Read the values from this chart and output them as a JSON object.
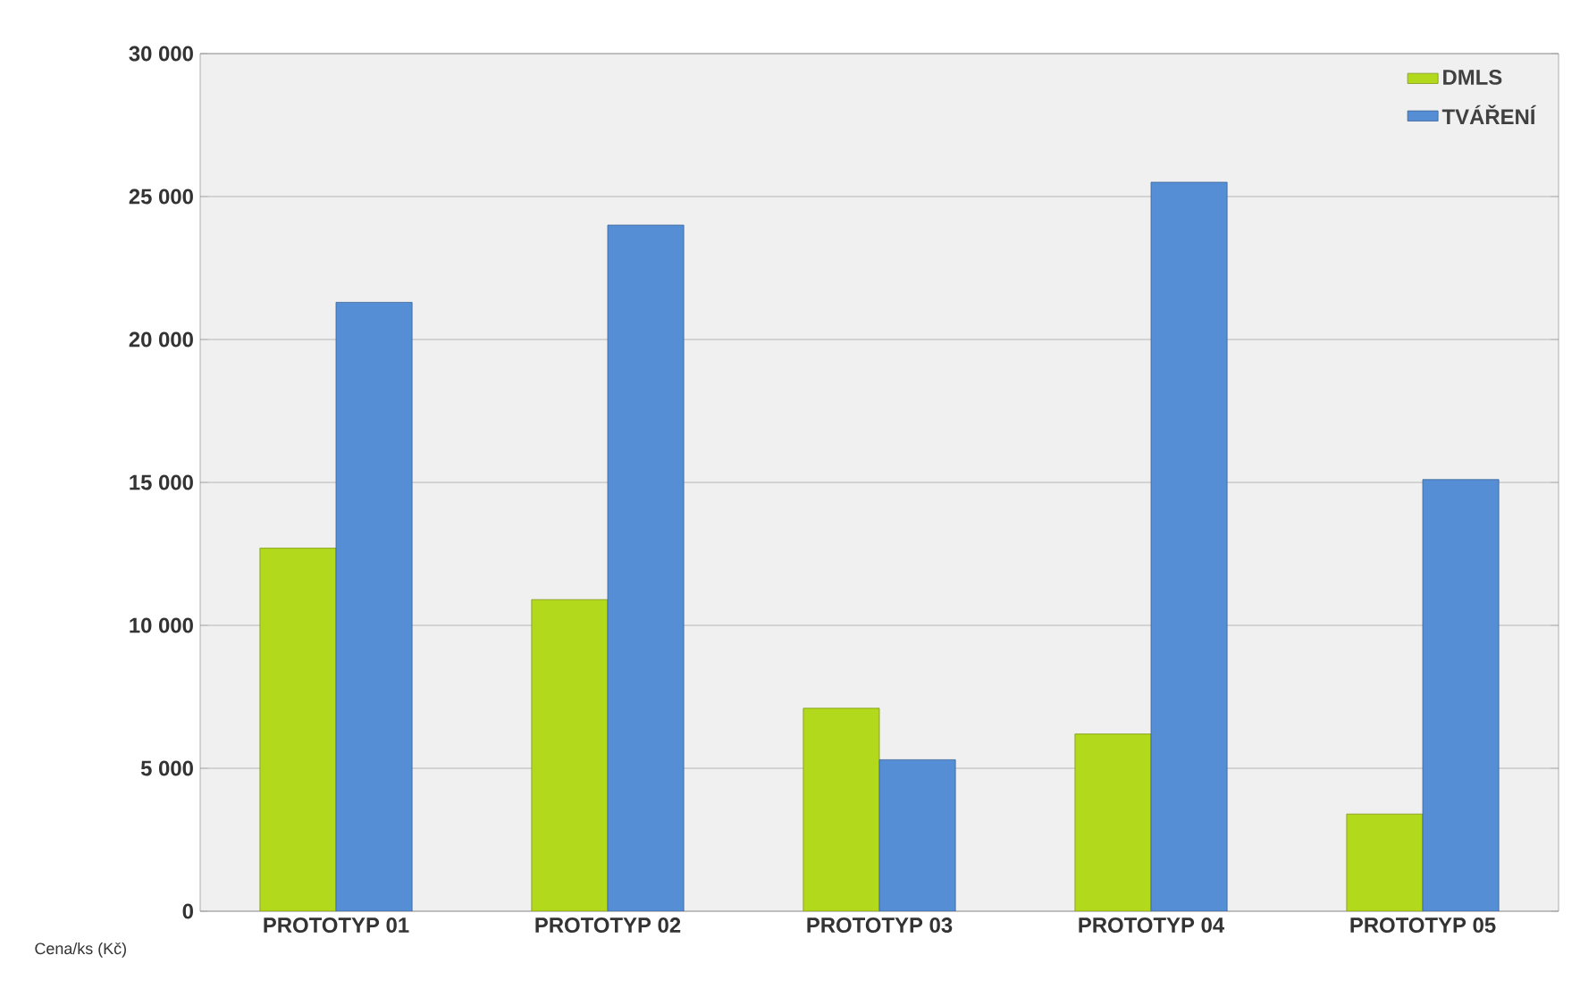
{
  "chart_data": {
    "type": "bar",
    "ylabel": "Cena/ks (Kč)",
    "categories": [
      "PROTOTYP 01",
      "PROTOTYP 02",
      "PROTOTYP 03",
      "PROTOTYP 04",
      "PROTOTYP 05"
    ],
    "series": [
      {
        "name": "DMLS",
        "color": "#b3d91c",
        "values": [
          12700,
          10900,
          7100,
          6200,
          3400
        ]
      },
      {
        "name": "TVÁŘENÍ",
        "color": "#558ed5",
        "values": [
          21300,
          24000,
          5300,
          25500,
          15100
        ]
      }
    ],
    "ylim": [
      0,
      30000
    ],
    "yticks": [
      {
        "value": 0,
        "label": "0"
      },
      {
        "value": 5000,
        "label": "5 000"
      },
      {
        "value": 10000,
        "label": "10 000"
      },
      {
        "value": 15000,
        "label": "15 000"
      },
      {
        "value": 20000,
        "label": "20 000"
      },
      {
        "value": 25000,
        "label": "25 000"
      },
      {
        "value": 30000,
        "label": "30 000"
      }
    ],
    "grid": "y",
    "legend": "top right"
  }
}
